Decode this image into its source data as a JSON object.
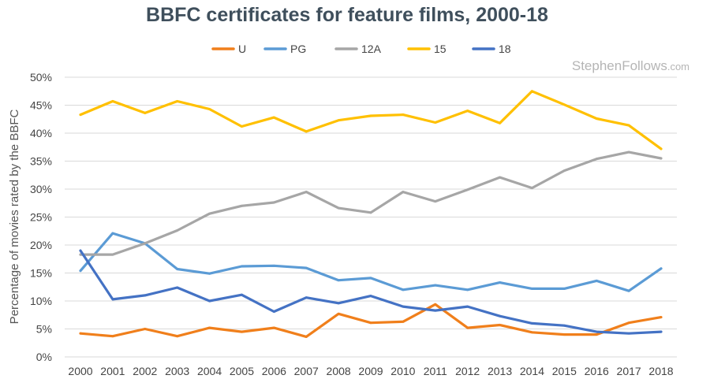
{
  "chart_data": {
    "type": "line",
    "title": "BBFC certificates for feature films, 2000-18",
    "xlabel": "",
    "ylabel": "Percentage of movies rated by the BBFC",
    "watermark": {
      "main": "StephenFollows",
      "suffix": ".com"
    },
    "legend_position": "top",
    "grid": true,
    "ylim": [
      0,
      50
    ],
    "yticks": [
      0,
      5,
      10,
      15,
      20,
      25,
      30,
      35,
      40,
      45,
      50
    ],
    "ytick_labels": [
      "0%",
      "5%",
      "10%",
      "15%",
      "20%",
      "25%",
      "30%",
      "35%",
      "40%",
      "45%",
      "50%"
    ],
    "categories": [
      "2000",
      "2001",
      "2002",
      "2003",
      "2004",
      "2005",
      "2006",
      "2007",
      "2008",
      "2009",
      "2010",
      "2011",
      "2012",
      "2013",
      "2014",
      "2015",
      "2016",
      "2017",
      "2018"
    ],
    "series": [
      {
        "name": "U",
        "color": "#f07f1b",
        "values": [
          4.2,
          3.7,
          5.0,
          3.7,
          5.2,
          4.5,
          5.2,
          3.6,
          7.7,
          6.1,
          6.3,
          9.4,
          5.2,
          5.7,
          4.4,
          4.0,
          4.0,
          6.1,
          7.1
        ]
      },
      {
        "name": "PG",
        "color": "#5b9bd5",
        "values": [
          15.4,
          22.1,
          20.3,
          15.7,
          14.9,
          16.2,
          16.3,
          15.9,
          13.7,
          14.1,
          12.0,
          12.8,
          12.0,
          13.3,
          12.2,
          12.2,
          13.6,
          11.8,
          15.8
        ]
      },
      {
        "name": "12A",
        "color": "#a6a6a6",
        "values": [
          18.3,
          18.3,
          20.3,
          22.6,
          25.6,
          27.0,
          27.6,
          29.5,
          26.6,
          25.8,
          29.5,
          27.8,
          29.9,
          32.1,
          30.2,
          33.3,
          35.4,
          36.6,
          35.5
        ]
      },
      {
        "name": "15",
        "color": "#ffc000",
        "values": [
          43.3,
          45.7,
          43.6,
          45.7,
          44.3,
          41.2,
          42.8,
          40.3,
          42.3,
          43.1,
          43.3,
          41.9,
          44.0,
          41.8,
          47.5,
          45.1,
          42.6,
          41.4,
          37.2
        ]
      },
      {
        "name": "18",
        "color": "#4472c4",
        "values": [
          19.0,
          10.3,
          11.0,
          12.4,
          10.0,
          11.1,
          8.1,
          10.6,
          9.6,
          10.9,
          9.0,
          8.3,
          9.0,
          7.3,
          6.0,
          5.6,
          4.5,
          4.2,
          4.5
        ]
      }
    ]
  }
}
